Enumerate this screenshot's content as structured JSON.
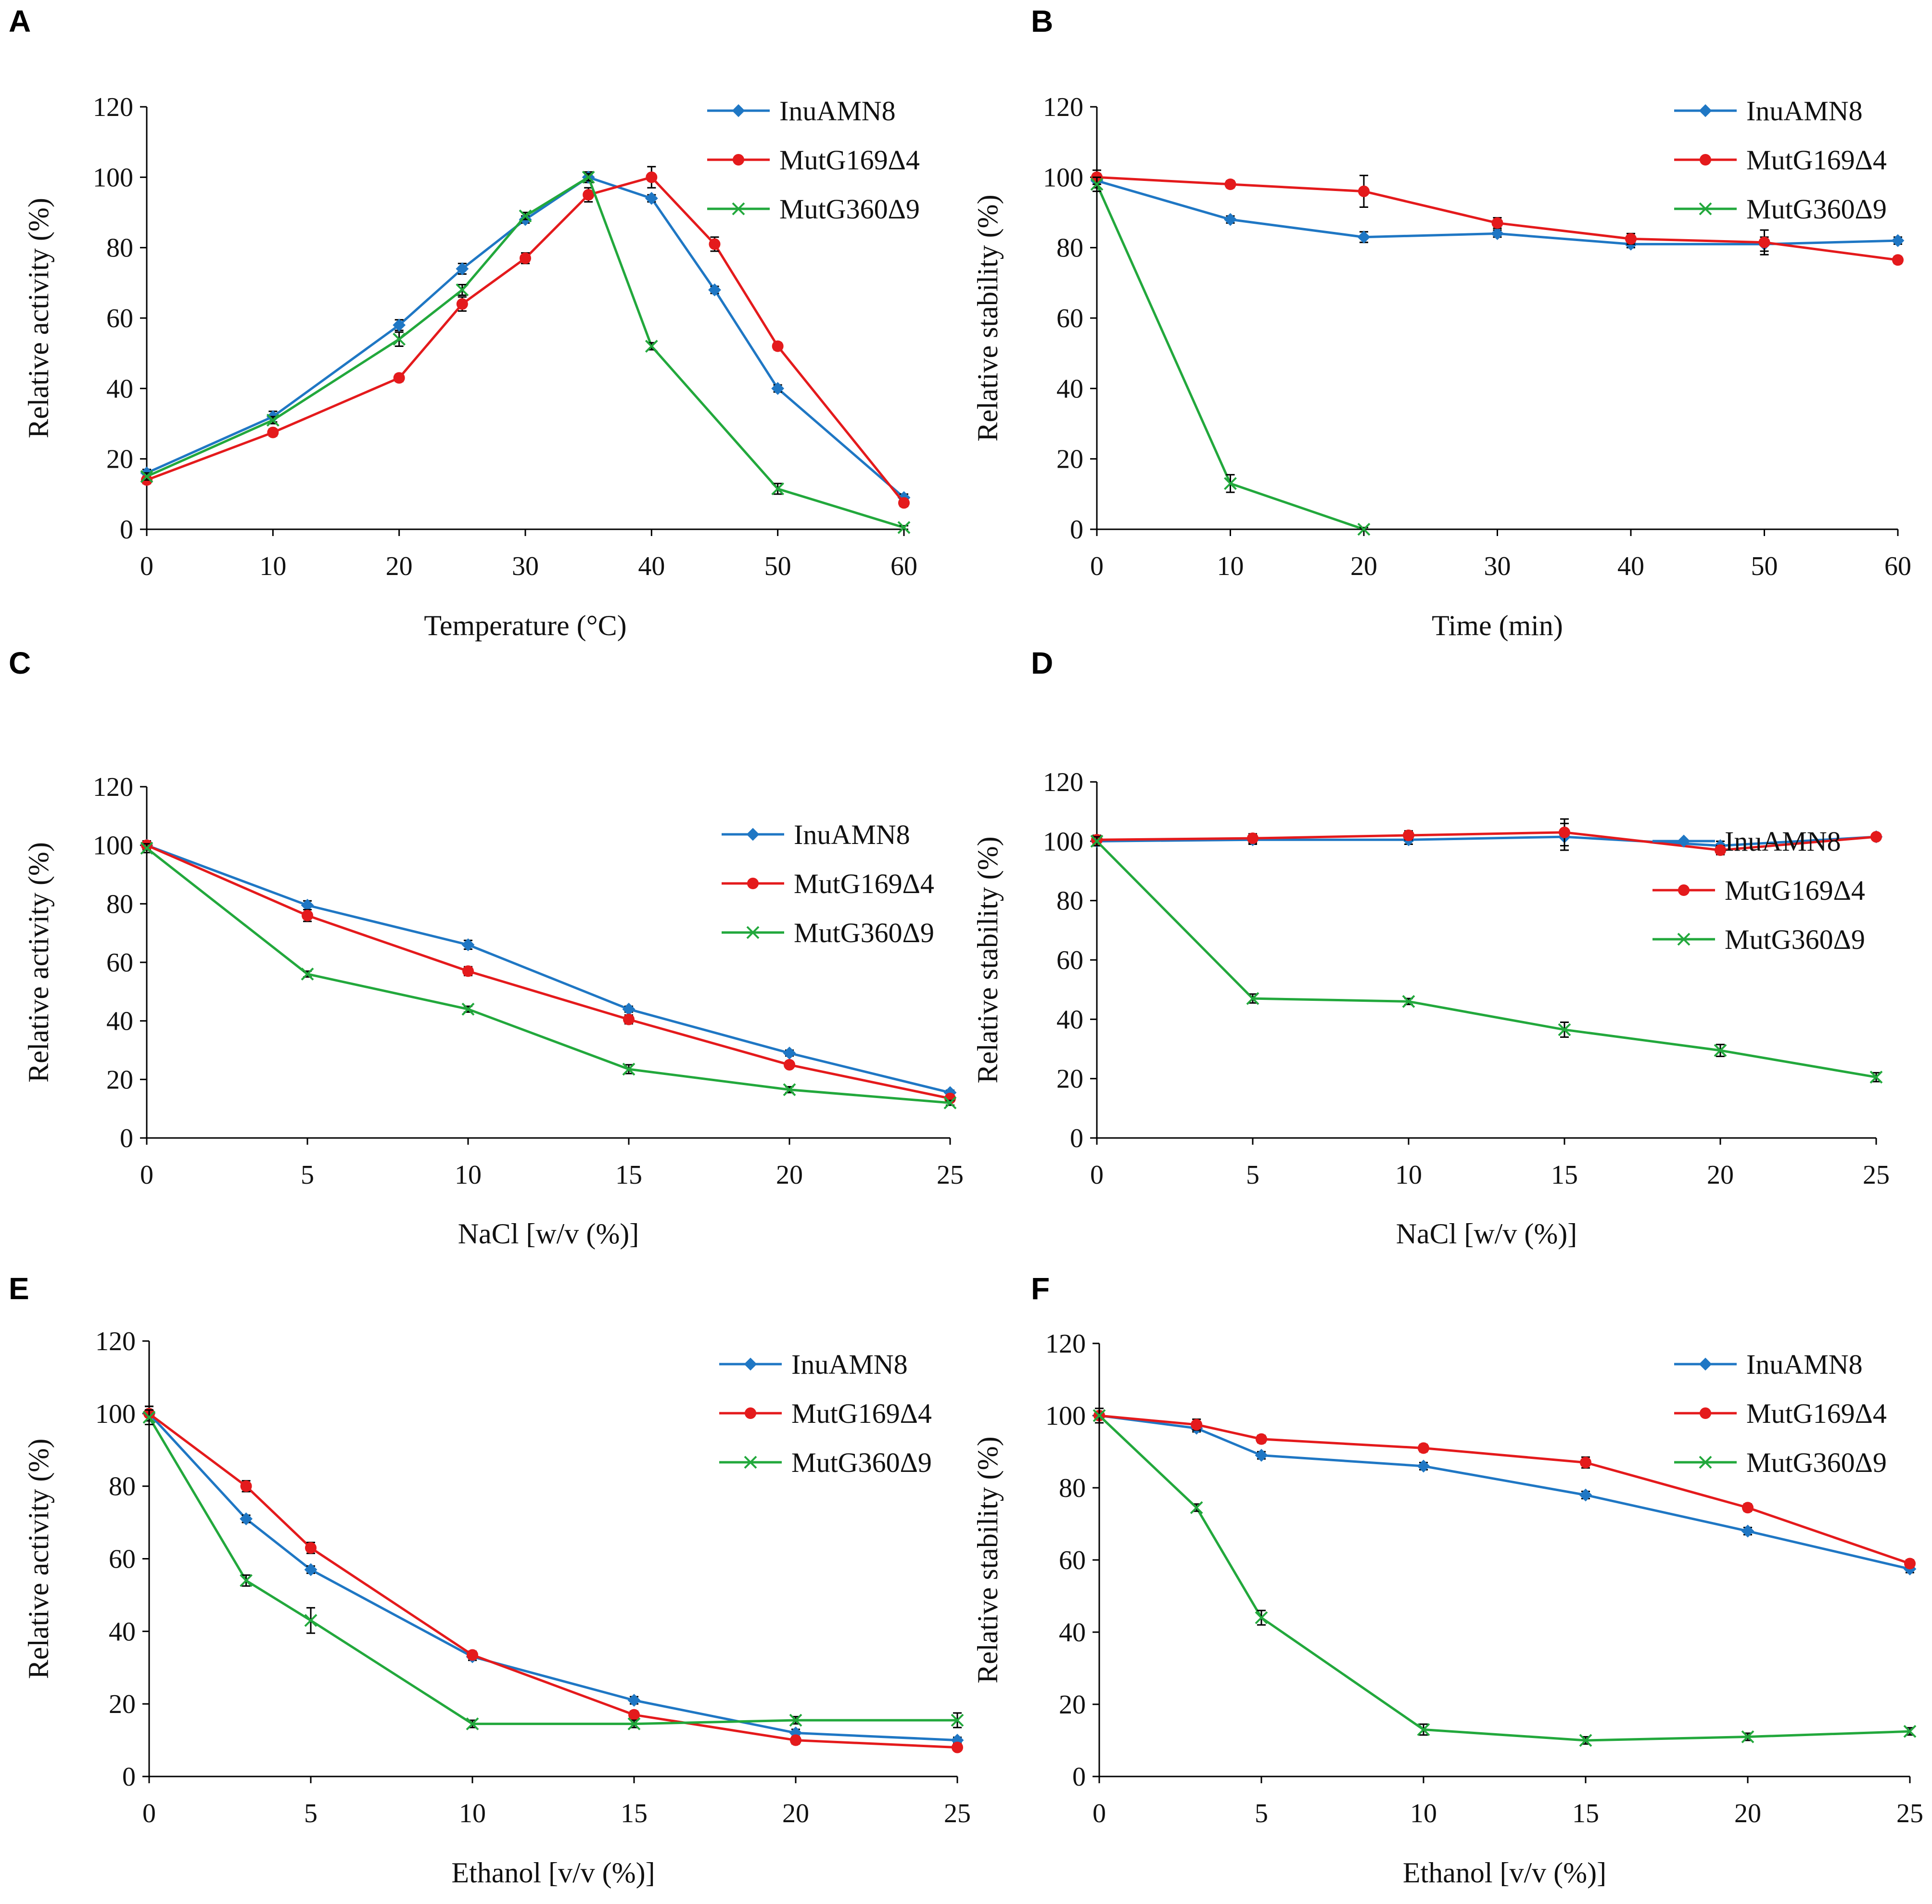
{
  "colors": {
    "InuAMN8": "#1f77c4",
    "MutG169Δ4": "#e41a1c",
    "MutG360Δ9": "#22a83c",
    "axis": "#000000",
    "errorbar": "#000000"
  },
  "chart_data": [
    {
      "panel": "A",
      "type": "line",
      "title": "",
      "xlabel": "Temperature (°C)",
      "ylabel": "Relative activity (%)",
      "xlim": [
        0,
        60
      ],
      "ylim": [
        0,
        120
      ],
      "xticks": [
        0,
        10,
        20,
        30,
        40,
        50,
        60
      ],
      "yticks": [
        0,
        20,
        40,
        60,
        80,
        100,
        120
      ],
      "legend_position": "top-right",
      "series": [
        {
          "name": "InuAMN8",
          "marker": "diamond",
          "x": [
            0,
            10,
            20,
            25,
            30,
            35,
            40,
            45,
            50,
            60
          ],
          "values": [
            16,
            32,
            58,
            74,
            88,
            100,
            94,
            68,
            40,
            9
          ],
          "errors": [
            1,
            1.5,
            1.5,
            1.5,
            1,
            1.5,
            1,
            1,
            1,
            1
          ]
        },
        {
          "name": "MutG169Δ4",
          "marker": "circle",
          "x": [
            0,
            10,
            20,
            25,
            30,
            35,
            40,
            45,
            50,
            60
          ],
          "values": [
            14,
            27.5,
            43,
            64,
            77,
            95,
            100,
            81,
            52,
            7.5
          ],
          "errors": [
            1,
            1,
            1,
            2,
            1.5,
            2,
            3,
            2,
            1,
            1
          ]
        },
        {
          "name": "MutG360Δ9",
          "marker": "x",
          "x": [
            0,
            10,
            20,
            25,
            30,
            35,
            40,
            50,
            60
          ],
          "values": [
            15,
            31,
            54,
            68,
            89,
            100,
            52,
            11.5,
            0.5
          ],
          "errors": [
            1,
            1,
            2,
            1.5,
            1,
            1,
            1,
            1.5,
            0.5
          ]
        }
      ]
    },
    {
      "panel": "B",
      "type": "line",
      "title": "",
      "xlabel": "Time (min)",
      "ylabel": "Relative stability (%)",
      "xlim": [
        0,
        60
      ],
      "ylim": [
        0,
        120
      ],
      "xticks": [
        0,
        10,
        20,
        30,
        40,
        50,
        60
      ],
      "yticks": [
        0,
        20,
        40,
        60,
        80,
        100,
        120
      ],
      "legend_position": "top-right",
      "series": [
        {
          "name": "InuAMN8",
          "marker": "diamond",
          "x": [
            0,
            10,
            20,
            30,
            40,
            50,
            60
          ],
          "values": [
            99,
            88,
            83,
            84,
            81,
            81,
            82
          ],
          "errors": [
            2,
            1,
            1.5,
            1,
            1,
            2,
            1
          ]
        },
        {
          "name": "MutG169Δ4",
          "marker": "circle",
          "x": [
            0,
            10,
            20,
            30,
            40,
            50,
            60
          ],
          "values": [
            100,
            98,
            96,
            87,
            82.5,
            81.5,
            76.5
          ],
          "errors": [
            2,
            1,
            4.5,
            1.5,
            1.5,
            3.5,
            1
          ]
        },
        {
          "name": "MutG360Δ9",
          "marker": "x",
          "x": [
            0,
            10,
            20
          ],
          "values": [
            98,
            13,
            0
          ],
          "errors": [
            2,
            2.5,
            0.5
          ]
        }
      ]
    },
    {
      "panel": "C",
      "type": "line",
      "title": "",
      "xlabel": "NaCl [w/v (%)]",
      "ylabel": "Relative activity (%)",
      "xlim": [
        0,
        25
      ],
      "ylim": [
        0,
        120
      ],
      "xticks": [
        0,
        5,
        10,
        15,
        20,
        25
      ],
      "yticks": [
        0,
        20,
        40,
        60,
        80,
        100,
        120
      ],
      "legend_position": "right",
      "series": [
        {
          "name": "InuAMN8",
          "marker": "diamond",
          "x": [
            0,
            5,
            10,
            15,
            20,
            25
          ],
          "values": [
            100,
            79.5,
            66,
            44,
            29,
            15.5
          ],
          "errors": [
            1.5,
            1.5,
            1.5,
            1,
            1,
            0.8
          ]
        },
        {
          "name": "MutG169Δ4",
          "marker": "circle",
          "x": [
            0,
            5,
            10,
            15,
            20,
            25
          ],
          "values": [
            100,
            76,
            57,
            40.5,
            25,
            13.5
          ],
          "errors": [
            1.5,
            2,
            1.5,
            1.5,
            1,
            0.8
          ]
        },
        {
          "name": "MutG360Δ9",
          "marker": "x",
          "x": [
            0,
            5,
            10,
            15,
            20,
            25
          ],
          "values": [
            99,
            56,
            44,
            23.5,
            16.5,
            12
          ],
          "errors": [
            1.5,
            1,
            1,
            1.5,
            1,
            0.8
          ]
        }
      ]
    },
    {
      "panel": "D",
      "type": "line",
      "title": "",
      "xlabel": "NaCl [w/v (%)]",
      "ylabel": "Relative stability (%)",
      "xlim": [
        0,
        25
      ],
      "ylim": [
        0,
        120
      ],
      "xticks": [
        0,
        5,
        10,
        15,
        20,
        25
      ],
      "yticks": [
        0,
        20,
        40,
        60,
        80,
        100,
        120
      ],
      "legend_position": "right",
      "series": [
        {
          "name": "InuAMN8",
          "marker": "diamond",
          "x": [
            0,
            5,
            10,
            15,
            20,
            25
          ],
          "values": [
            100,
            100.5,
            100.5,
            101.5,
            98.5,
            101.5
          ],
          "errors": [
            1.5,
            1.5,
            1.5,
            4.5,
            1.5,
            1
          ]
        },
        {
          "name": "MutG169Δ4",
          "marker": "circle",
          "x": [
            0,
            5,
            10,
            15,
            20,
            25
          ],
          "values": [
            100.5,
            101,
            102,
            103,
            97,
            101.5
          ],
          "errors": [
            1.5,
            1.5,
            1.5,
            4.5,
            1.5,
            1
          ]
        },
        {
          "name": "MutG360Δ9",
          "marker": "x",
          "x": [
            0,
            5,
            10,
            15,
            20,
            25
          ],
          "values": [
            100,
            47,
            46,
            36.5,
            29.5,
            20.5
          ],
          "errors": [
            1.5,
            1.5,
            1,
            2.5,
            2,
            1.5
          ]
        }
      ]
    },
    {
      "panel": "E",
      "type": "line",
      "title": "",
      "xlabel": "Ethanol [v/v (%)]",
      "ylabel": "Relative activity (%)",
      "xlim": [
        0,
        25
      ],
      "ylim": [
        0,
        120
      ],
      "xticks": [
        0,
        5,
        10,
        15,
        20,
        25
      ],
      "yticks": [
        0,
        20,
        40,
        60,
        80,
        100,
        120
      ],
      "legend_position": "top-right",
      "series": [
        {
          "name": "InuAMN8",
          "marker": "diamond",
          "x": [
            0,
            3,
            5,
            10,
            15,
            20,
            25
          ],
          "values": [
            100,
            71,
            57,
            33,
            21,
            12,
            10
          ],
          "errors": [
            2,
            1,
            1,
            1,
            1,
            1,
            0.8
          ]
        },
        {
          "name": "MutG169Δ4",
          "marker": "circle",
          "x": [
            0,
            3,
            5,
            10,
            15,
            20,
            25
          ],
          "values": [
            100,
            80,
            63,
            33.5,
            17,
            10,
            8
          ],
          "errors": [
            2,
            1.5,
            1.5,
            1,
            1,
            1,
            0.8
          ]
        },
        {
          "name": "MutG360Δ9",
          "marker": "x",
          "x": [
            0,
            3,
            5,
            10,
            15,
            20,
            25
          ],
          "values": [
            99,
            54,
            43,
            14.5,
            14.5,
            15.5,
            15.5
          ],
          "errors": [
            2,
            1.5,
            3.5,
            1,
            1,
            1,
            2
          ]
        }
      ]
    },
    {
      "panel": "F",
      "type": "line",
      "title": "",
      "xlabel": "Ethanol [v/v (%)]",
      "ylabel": "Relative stability (%)",
      "xlim": [
        0,
        25
      ],
      "ylim": [
        0,
        120
      ],
      "xticks": [
        0,
        5,
        10,
        15,
        20,
        25
      ],
      "yticks": [
        0,
        20,
        40,
        60,
        80,
        100,
        120
      ],
      "legend_position": "top-right",
      "series": [
        {
          "name": "InuAMN8",
          "marker": "diamond",
          "x": [
            0,
            3,
            5,
            10,
            15,
            20,
            25
          ],
          "values": [
            100,
            96.5,
            89,
            86,
            78,
            68,
            57.5
          ],
          "errors": [
            2,
            1,
            1,
            1,
            1,
            1,
            1
          ]
        },
        {
          "name": "MutG169Δ4",
          "marker": "circle",
          "x": [
            0,
            3,
            5,
            10,
            15,
            20,
            25
          ],
          "values": [
            100,
            97.5,
            93.5,
            91,
            87,
            74.5,
            59
          ],
          "errors": [
            2,
            1.5,
            1,
            1,
            1.5,
            1,
            1
          ]
        },
        {
          "name": "MutG360Δ9",
          "marker": "x",
          "x": [
            0,
            3,
            5,
            10,
            15,
            20,
            25
          ],
          "values": [
            100,
            74.5,
            44,
            13,
            10,
            11,
            12.5
          ],
          "errors": [
            2,
            1,
            2,
            1.5,
            1,
            1,
            1
          ]
        }
      ]
    }
  ]
}
